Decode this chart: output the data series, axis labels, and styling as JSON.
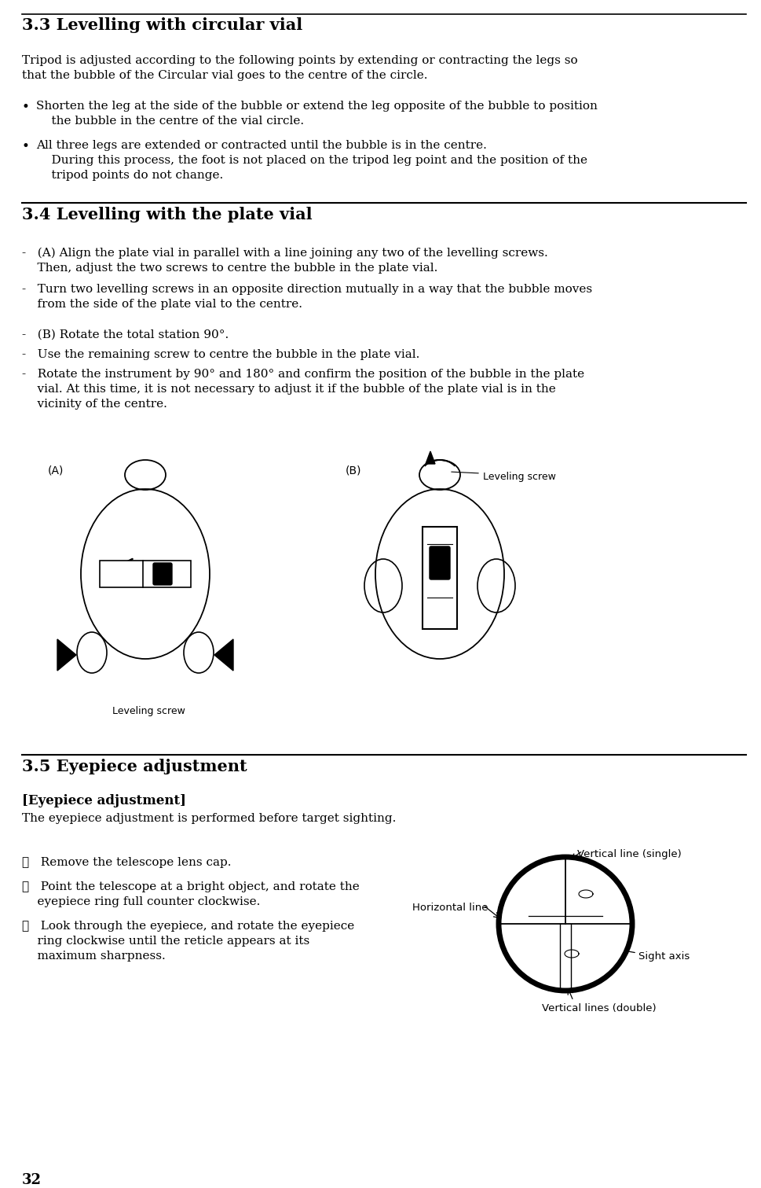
{
  "bg_color": "#ffffff",
  "text_color": "#000000",
  "page_width": 9.69,
  "page_height": 15.11,
  "dpi": 100,
  "section_33_title": "3.3 Levelling with circular vial",
  "section_34_title": "3.4 Levelling with the plate vial",
  "section_35_title": "3.5 Eyepiece adjustment",
  "section_35_subtitle": "[Eyepiece adjustment]",
  "section_35_body": "The eyepiece adjustment is performed before target sighting.",
  "page_number": "32"
}
